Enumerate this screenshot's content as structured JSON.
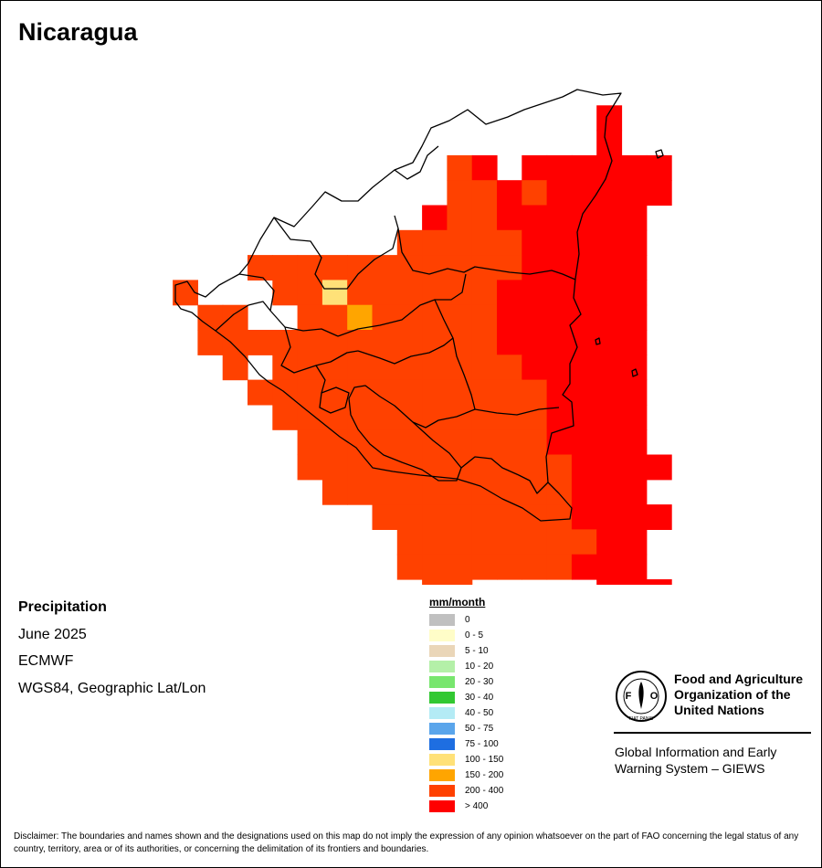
{
  "title": "Nicaragua",
  "info": {
    "variable": "Precipitation",
    "period": "June 2025",
    "source": "ECMWF",
    "projection": "WGS84, Geographic Lat/Lon"
  },
  "legend": {
    "unit": "mm/month",
    "classes": [
      {
        "label": "0",
        "color": "#c0c0c0"
      },
      {
        "label": "0 - 5",
        "color": "#fffdc8"
      },
      {
        "label": "5 - 10",
        "color": "#ead6b8"
      },
      {
        "label": "10 - 20",
        "color": "#b4f0a8"
      },
      {
        "label": "20 - 30",
        "color": "#78e66e"
      },
      {
        "label": "30 - 40",
        "color": "#32c832"
      },
      {
        "label": "40 - 50",
        "color": "#b4ebf5"
      },
      {
        "label": "50 - 75",
        "color": "#5aa5eb"
      },
      {
        "label": "75 - 100",
        "color": "#1e6ee1"
      },
      {
        "label": "100 - 150",
        "color": "#ffe178"
      },
      {
        "label": "150 - 200",
        "color": "#ffa500"
      },
      {
        "label": "200 - 400",
        "color": "#ff4100"
      },
      {
        "label": "> 400",
        "color": "#ff0000"
      }
    ]
  },
  "organization": {
    "logo_text": "FAO",
    "logo_motto": "FIAT PANIS",
    "name_line1": "Food and Agriculture",
    "name_line2": "Organization of the",
    "name_line3": "United Nations",
    "system_line1": "Global Information and Early",
    "system_line2": "Warning System – GIEWS"
  },
  "disclaimer": "Disclaimer: The boundaries and names shown and the designations used on this map do not imply the expression of any opinion whatsoever on the part of FAO concerning the legal status of any country, territory, area or of its authorities, or concerning the delimitation of its frontiers and boundaries.",
  "map": {
    "colors": {
      "a": "#ff4100",
      "r": "#ff0000",
      "o": "#ffa500",
      "y": "#ffe178"
    },
    "grid_rows": [
      ".................",
      "..............r..",
      "..............r..",
      "........ar.rrrrrr",
      "........aararrrrr",
      ".......raarrrrrr.",
      "......aaaaarrrrr.",
      "aaaaaaaaaaarrrrr.",
      ".aayaaaaaarrrrrr.",
      "..aaoaaaaarrrrrr.",
      "aaaaaaaaaarrrrrr.",
      ".aaaaaaaaaarrrrr.",
      ".aaaaaaaaaaarrrr.",
      ".aaaaaaaaaaarrrr.",
      "..aaaaaaaaaarrrr.",
      "..aaaaaaaaaaarrrr",
      "...aaaaaaaaaarrr.",
      ".....aaaaaaaarrrr",
      "......aaaaaaaarr.",
      "......aaaaaaarrr.",
      ".......aa.....rrr"
    ],
    "extra_cells": [
      {
        "row": 8,
        "col": -3,
        "c": "a"
      },
      {
        "row": 9,
        "col": -2,
        "c": "a"
      },
      {
        "row": 9,
        "col": -1,
        "c": "a"
      },
      {
        "row": 10,
        "col": -2,
        "c": "a"
      },
      {
        "row": 10,
        "col": -1,
        "c": "a"
      },
      {
        "row": 11,
        "col": -1,
        "c": "a"
      },
      {
        "row": 12,
        "col": 0,
        "c": "a"
      }
    ]
  }
}
